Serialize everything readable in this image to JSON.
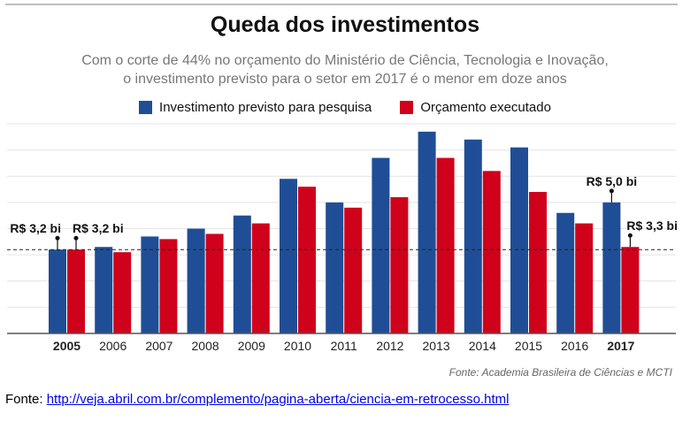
{
  "chart_data": {
    "type": "bar",
    "title": "Queda dos investimentos",
    "subtitle_line1": "Com o corte de 44% no orçamento do Ministério de Ciência, Tecnologia e Inovação,",
    "subtitle_line2": "o investimento previsto para o setor em 2017 é o menor em doze anos",
    "categories": [
      "2005",
      "2006",
      "2007",
      "2008",
      "2009",
      "2010",
      "2011",
      "2012",
      "2013",
      "2014",
      "2015",
      "2016",
      "2017"
    ],
    "bold_categories": [
      "2005",
      "2017"
    ],
    "series": [
      {
        "name": "Investimento previsto para pesquisa",
        "color": "#1f4e96",
        "values": [
          3.2,
          3.3,
          3.7,
          4.0,
          4.5,
          5.9,
          5.0,
          6.7,
          7.7,
          7.4,
          7.1,
          4.6,
          5.0
        ]
      },
      {
        "name": "Orçamento executado",
        "color": "#d0021b",
        "values": [
          3.2,
          3.1,
          3.6,
          3.8,
          4.2,
          5.6,
          4.8,
          5.2,
          6.7,
          6.2,
          5.4,
          4.2,
          3.3
        ]
      }
    ],
    "ylim": [
      0,
      8
    ],
    "grid": true,
    "reference_line": 3.2,
    "annotations": [
      {
        "category": "2005",
        "series": 0,
        "text": "R$ 3,2 bi"
      },
      {
        "category": "2005",
        "series": 1,
        "text": "R$ 3,2 bi"
      },
      {
        "category": "2017",
        "series": 0,
        "text": "R$ 5,0 bi"
      },
      {
        "category": "2017",
        "series": 1,
        "text": "R$ 3,3 bi"
      }
    ],
    "legend_position": "top"
  },
  "source_note": "Fonte: Academia Brasileira de Ciências e MCTI",
  "footer": {
    "label": "Fonte: ",
    "link_text": "http://veja.abril.com.br/complemento/pagina-aberta/ciencia-em-retrocesso.html"
  }
}
